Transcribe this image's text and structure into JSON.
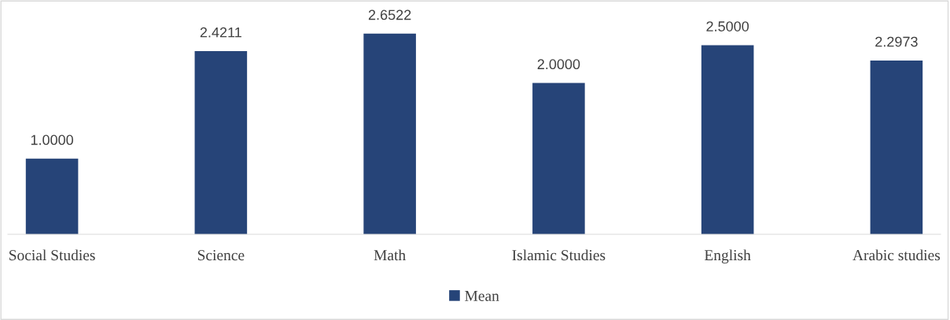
{
  "chart_data": {
    "type": "bar",
    "categories": [
      "Social Studies",
      "Science",
      "Math",
      "Islamic Studies",
      "English",
      "Arabic studies"
    ],
    "series": [
      {
        "name": "Mean",
        "color": "#264478",
        "values": [
          1.0,
          2.4211,
          2.6522,
          2.0,
          2.5,
          2.2973
        ],
        "value_labels": [
          "1.0000",
          "2.4211",
          "2.6522",
          "2.0000",
          "2.5000",
          "2.2973"
        ]
      }
    ],
    "legend": "bottom",
    "grid": false,
    "tick_labels": "x"
  }
}
